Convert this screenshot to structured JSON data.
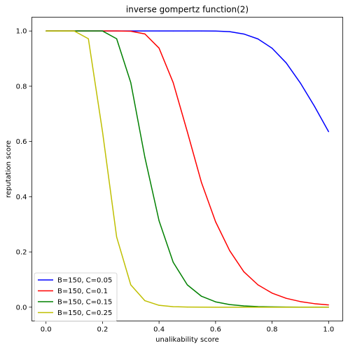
{
  "chart_data": {
    "type": "line",
    "title": "inverse gompertz function(2)",
    "xlabel": "unalikability score",
    "ylabel": "reputation score",
    "xlim": [
      -0.05,
      1.05
    ],
    "ylim": [
      -0.05,
      1.05
    ],
    "xticks": [
      0.0,
      0.2,
      0.4,
      0.6,
      0.8,
      1.0
    ],
    "xtick_labels": [
      "0.0",
      "0.2",
      "0.4",
      "0.6",
      "0.8",
      "1.0"
    ],
    "yticks": [
      0.0,
      0.2,
      0.4,
      0.6,
      0.8,
      1.0
    ],
    "ytick_labels": [
      "0.0",
      "0.2",
      "0.4",
      "0.6",
      "0.8",
      "1.0"
    ],
    "grid": false,
    "legend_position": "lower-left",
    "x": [
      0.0,
      0.05,
      0.1,
      0.15,
      0.2,
      0.25,
      0.3,
      0.35,
      0.4,
      0.45,
      0.5,
      0.55,
      0.6,
      0.65,
      0.7,
      0.75,
      0.8,
      0.85,
      0.9,
      0.95,
      1.0
    ],
    "series": [
      {
        "name": "B=150, C=0.05",
        "color": "#0000ff",
        "values": [
          1.0,
          1.0,
          1.0,
          1.0,
          1.0,
          1.0,
          1.0,
          1.0,
          1.0,
          1.0,
          1.0,
          1.0,
          0.9999,
          0.9976,
          0.9891,
          0.9713,
          0.9376,
          0.8844,
          0.8118,
          0.7273,
          0.6353
        ]
      },
      {
        "name": "B=150, C=0.1",
        "color": "#ff0000",
        "values": [
          1.0,
          1.0,
          1.0,
          1.0,
          1.0,
          1.0,
          0.9993,
          0.9894,
          0.9381,
          0.8132,
          0.6353,
          0.4517,
          0.3095,
          0.2045,
          0.1282,
          0.0808,
          0.0509,
          0.0321,
          0.0203,
          0.0127,
          0.008
        ]
      },
      {
        "name": "B=150, C=0.15",
        "color": "#008000",
        "values": [
          1.0,
          1.0,
          1.0,
          1.0,
          1.0,
          0.9718,
          0.8132,
          0.542,
          0.313,
          0.1627,
          0.0808,
          0.0396,
          0.0193,
          0.0094,
          0.0046,
          0.0022,
          0.0011,
          0.0005,
          0.0003,
          0.0001,
          0.0001
        ]
      },
      {
        "name": "B=150, C=0.25",
        "color": "#bfbf00",
        "values": [
          1.0,
          1.0,
          1.0,
          0.9718,
          0.6353,
          0.254,
          0.0808,
          0.0235,
          0.0067,
          0.0019,
          0.0005,
          0.0002,
          0.0,
          0.0,
          0.0,
          0.0,
          0.0,
          0.0,
          0.0,
          0.0,
          0.0
        ]
      }
    ]
  }
}
